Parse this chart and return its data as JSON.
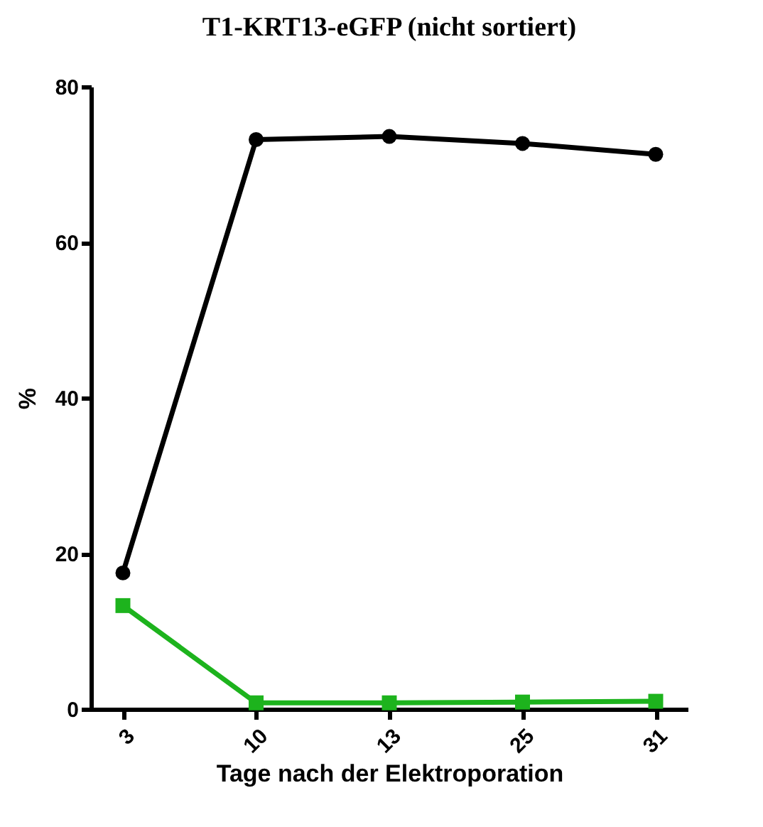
{
  "chart_data": {
    "type": "line",
    "title": "T1-KRT13-eGFP (nicht sortiert)",
    "xlabel": "Tage nach der Elektroporation",
    "ylabel": "%",
    "categories": [
      "3",
      "10",
      "13",
      "25",
      "31"
    ],
    "series": [
      {
        "color": "#000000",
        "marker": "circle",
        "values": [
          17.5,
          73.2,
          73.6,
          72.7,
          71.3
        ]
      },
      {
        "color": "#1db31d",
        "marker": "square",
        "values": [
          13.3,
          0.8,
          0.8,
          0.9,
          1.0
        ]
      }
    ],
    "ylim": [
      0,
      80
    ],
    "yticks": [
      0,
      20,
      40,
      60,
      80
    ],
    "grid": false,
    "line_style": "solid"
  }
}
